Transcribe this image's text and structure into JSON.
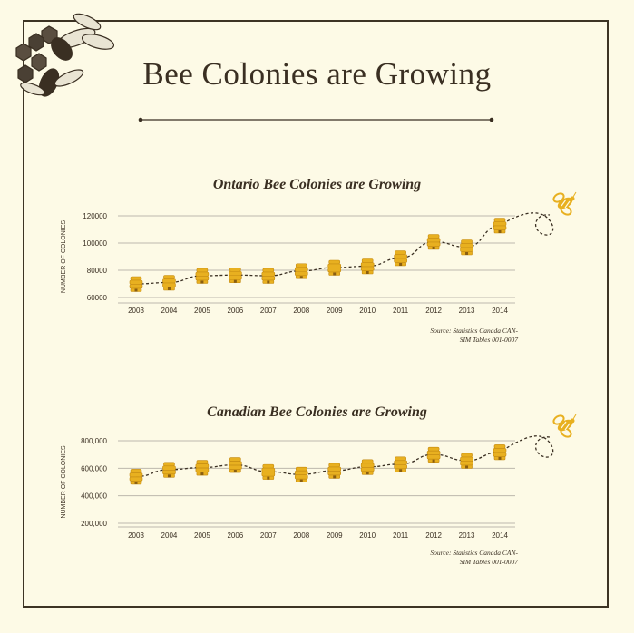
{
  "page": {
    "title": "Bee Colonies are Growing"
  },
  "colors": {
    "background": "#fdfae6",
    "ink": "#3a2f22",
    "accent": "#e8b020",
    "grid": "#bdb8ad"
  },
  "chart_data": [
    {
      "type": "line",
      "title": "Ontario Bee Colonies are Growing",
      "ylabel": "NUMBER OF COLONIES",
      "xlabel": "",
      "x": [
        "2003",
        "2004",
        "2005",
        "2006",
        "2007",
        "2008",
        "2009",
        "2010",
        "2011",
        "2012",
        "2013",
        "2014"
      ],
      "series": [
        {
          "values": [
            70000,
            71000,
            76000,
            76500,
            76000,
            79500,
            82000,
            83000,
            89000,
            101000,
            97000,
            113000
          ]
        }
      ],
      "yticks": [
        60000,
        80000,
        100000,
        120000
      ],
      "ytick_labels": [
        "60000",
        "80000",
        "100000",
        "120000"
      ],
      "ylim": [
        60000,
        120000
      ],
      "marker": "beehive-icon",
      "source": [
        "Source: Statistics Canada CAN-",
        "SIM Tables 001-0007"
      ]
    },
    {
      "type": "line",
      "title": "Canadian Bee Colonies are Growing",
      "ylabel": "NUMBER OF COLONIES",
      "xlabel": "",
      "x": [
        "2003",
        "2004",
        "2005",
        "2006",
        "2007",
        "2008",
        "2009",
        "2010",
        "2011",
        "2012",
        "2013",
        "2014"
      ],
      "series": [
        {
          "values": [
            540000,
            590000,
            605000,
            625000,
            575000,
            555000,
            583000,
            610000,
            630000,
            700000,
            655000,
            718000
          ]
        }
      ],
      "yticks": [
        200000,
        400000,
        600000,
        800000
      ],
      "ytick_labels": [
        "200,000",
        "400,000",
        "600,000",
        "800,000"
      ],
      "ylim": [
        200000,
        800000
      ],
      "marker": "beehive-icon",
      "source": [
        "Source: Statistics Canada CAN-",
        "SIM Tables 001-0007"
      ]
    }
  ]
}
